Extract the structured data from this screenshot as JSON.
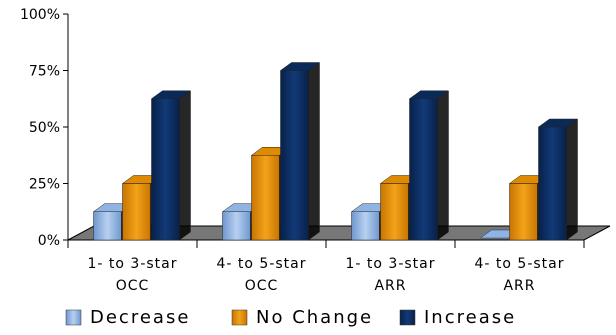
{
  "chart_data": {
    "type": "bar",
    "title": "",
    "xlabel": "",
    "ylabel": "",
    "y_format": "percent",
    "ylim": [
      0,
      100
    ],
    "yticks": [
      0,
      25,
      50,
      75,
      100
    ],
    "grid": false,
    "legend_position": "bottom",
    "categories": [
      [
        "1- to 3-star",
        "OCC"
      ],
      [
        "4- to 5-star",
        "OCC"
      ],
      [
        "1- to 3-star",
        "ARR"
      ],
      [
        "4- to 5-star",
        "ARR"
      ]
    ],
    "series": [
      {
        "name": "Decrease",
        "color": "#8fb4e3",
        "values": [
          12.5,
          12.5,
          12.5,
          0
        ]
      },
      {
        "name": "No Change",
        "color": "#e08a00",
        "values": [
          25,
          37.5,
          25,
          25
        ]
      },
      {
        "name": "Increase",
        "color": "#0a2a5a",
        "values": [
          62.5,
          75,
          62.5,
          50
        ]
      }
    ]
  }
}
